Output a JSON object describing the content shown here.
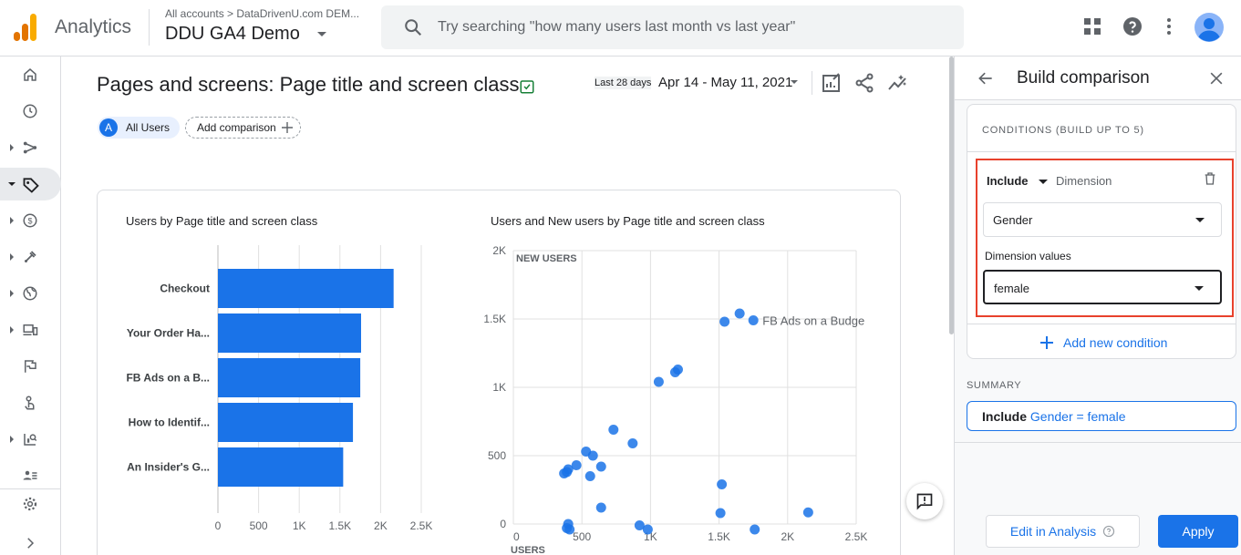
{
  "header": {
    "app_name": "Analytics",
    "account_crumb": "All accounts  >  DataDrivenU.com DEM...",
    "property_name": "DDU GA4 Demo",
    "search_placeholder": "Try searching \"how many users last month vs last year\""
  },
  "leftnav": {
    "items": [
      "home-icon",
      "realtime-clock-icon",
      "acquisition-icon",
      "engagement-tag-icon",
      "monetization-icon",
      "retention-icon",
      "demographics-globe-icon",
      "tech-devices-icon",
      "flag-icon",
      "touch-icon",
      "analysis-icon",
      "audience-icon"
    ],
    "active_index": 3
  },
  "report": {
    "title": "Pages and screens: Page title and screen class",
    "date_short": "Last 28 days",
    "date_range": "Apr 14 - May 11, 2021",
    "comparison_badge": "A",
    "comparison_chip": "All Users",
    "add_comparison": "Add comparison"
  },
  "charts": {
    "bar_title": "Users by Page title and screen class",
    "scatter_title": "Users and New users by Page title and screen class"
  },
  "chart_data": [
    {
      "type": "bar",
      "title": "Users by Page title and screen class",
      "categories": [
        "Checkout",
        "Your Order Ha...",
        "FB Ads on a B...",
        "How to Identif...",
        "An Insider's G..."
      ],
      "values": [
        2160,
        1760,
        1750,
        1660,
        1540
      ],
      "xlim": [
        0,
        2500
      ],
      "ticks": [
        "0",
        "500",
        "1K",
        "1.5K",
        "2K",
        "2.5K"
      ],
      "tick_values": [
        0,
        500,
        1000,
        1500,
        2000,
        2500
      ],
      "color": "#1a73e8"
    },
    {
      "type": "scatter",
      "title": "Users and New users by Page title and screen class",
      "xlabel": "USERS",
      "ylabel": "NEW USERS",
      "xlim": [
        0,
        2500
      ],
      "ylim": [
        0,
        2000
      ],
      "x_ticks": [
        "0",
        "500",
        "1K",
        "1.5K",
        "2K",
        "2.5K"
      ],
      "x_tick_values": [
        0,
        500,
        1000,
        1500,
        2000,
        2500
      ],
      "y_ticks": [
        "0",
        "500",
        "1K",
        "1.5K",
        "2K"
      ],
      "y_tick_values": [
        0,
        500,
        1000,
        1500,
        2000
      ],
      "annotation": "FB Ads on a Budge",
      "color": "#1a73e8",
      "points": [
        {
          "x": 1540,
          "y": 1480
        },
        {
          "x": 1650,
          "y": 1540
        },
        {
          "x": 1750,
          "y": 1490
        },
        {
          "x": 1060,
          "y": 1040
        },
        {
          "x": 1180,
          "y": 1110
        },
        {
          "x": 1200,
          "y": 1130
        },
        {
          "x": 730,
          "y": 690
        },
        {
          "x": 870,
          "y": 590
        },
        {
          "x": 530,
          "y": 530
        },
        {
          "x": 580,
          "y": 500
        },
        {
          "x": 460,
          "y": 430
        },
        {
          "x": 400,
          "y": 400
        },
        {
          "x": 390,
          "y": 380
        },
        {
          "x": 370,
          "y": 370
        },
        {
          "x": 640,
          "y": 420
        },
        {
          "x": 560,
          "y": 350
        },
        {
          "x": 1520,
          "y": 290
        },
        {
          "x": 640,
          "y": 120
        },
        {
          "x": 1510,
          "y": 80
        },
        {
          "x": 2150,
          "y": 85
        },
        {
          "x": 400,
          "y": 0
        },
        {
          "x": 410,
          "y": -40
        },
        {
          "x": 390,
          "y": -30
        },
        {
          "x": 920,
          "y": -10
        },
        {
          "x": 980,
          "y": -40
        },
        {
          "x": 1760,
          "y": -40
        }
      ]
    }
  ],
  "panel": {
    "title": "Build comparison",
    "conditions_heading": "CONDITIONS (BUILD UP TO 5)",
    "include_label": "Include",
    "dimension_label": "Dimension",
    "dimension_value": "Gender",
    "dimension_values_label": "Dimension values",
    "dimension_values_value": "female",
    "add_condition": "Add new condition",
    "summary_heading": "SUMMARY",
    "summary_include": "Include",
    "summary_expr": "Gender = female",
    "edit_in_analysis": "Edit in Analysis",
    "apply": "Apply"
  }
}
